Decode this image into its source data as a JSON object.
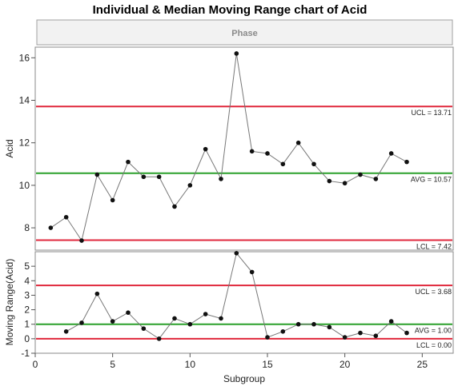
{
  "chart_data": {
    "title": "Individual & Median Moving Range chart of Acid",
    "phase_label": "Phase",
    "xlabel": "Subgroup",
    "xlim": [
      0,
      27
    ],
    "x_ticks": [
      0,
      5,
      10,
      15,
      20,
      25
    ],
    "type": "line",
    "colors": {
      "ucl": "#e0283c",
      "avg": "#2ba02b",
      "data": "#777777",
      "point": "#111111"
    },
    "panels": [
      {
        "id": "individual",
        "ylabel": "Acid",
        "ylim": [
          6.95,
          16.5
        ],
        "y_ticks": [
          8,
          10,
          12,
          14,
          16
        ],
        "series": [
          {
            "x": [
              1,
              2,
              3,
              4,
              5,
              6,
              7,
              8,
              9,
              10,
              11,
              12,
              13,
              14,
              15,
              16,
              17,
              18,
              19,
              20,
              21,
              22,
              23,
              24
            ],
            "values": [
              8.0,
              8.5,
              7.4,
              10.5,
              9.3,
              11.1,
              10.4,
              10.4,
              9.0,
              10.0,
              11.7,
              10.3,
              16.2,
              11.6,
              11.5,
              11.0,
              12.0,
              11.0,
              10.2,
              10.1,
              10.5,
              10.3,
              11.5,
              11.1
            ]
          }
        ],
        "limits": [
          {
            "kind": "ucl",
            "value": 13.71,
            "label": "UCL = 13.71"
          },
          {
            "kind": "avg",
            "value": 10.57,
            "label": "AVG = 10.57"
          },
          {
            "kind": "lcl",
            "value": 7.42,
            "label": "LCL = 7.42"
          }
        ]
      },
      {
        "id": "moving-range",
        "ylabel": "Moving Range(Acid)",
        "ylim": [
          -1,
          6
        ],
        "y_ticks": [
          -1,
          0,
          1,
          2,
          3,
          4,
          5
        ],
        "series": [
          {
            "x": [
              2,
              3,
              4,
              5,
              6,
              7,
              8,
              9,
              10,
              11,
              12,
              13,
              14,
              15,
              16,
              17,
              18,
              19,
              20,
              21,
              22,
              23,
              24
            ],
            "values": [
              0.5,
              1.1,
              3.1,
              1.2,
              1.8,
              0.7,
              0.0,
              1.4,
              1.0,
              1.7,
              1.4,
              5.9,
              4.6,
              0.1,
              0.5,
              1.0,
              1.0,
              0.8,
              0.1,
              0.4,
              0.2,
              1.2,
              0.4
            ]
          }
        ],
        "limits": [
          {
            "kind": "ucl",
            "value": 3.68,
            "label": "UCL = 3.68"
          },
          {
            "kind": "avg",
            "value": 1.0,
            "label": "AVG = 1.00"
          },
          {
            "kind": "lcl",
            "value": 0.0,
            "label": "LCL = 0.00"
          }
        ]
      }
    ]
  }
}
